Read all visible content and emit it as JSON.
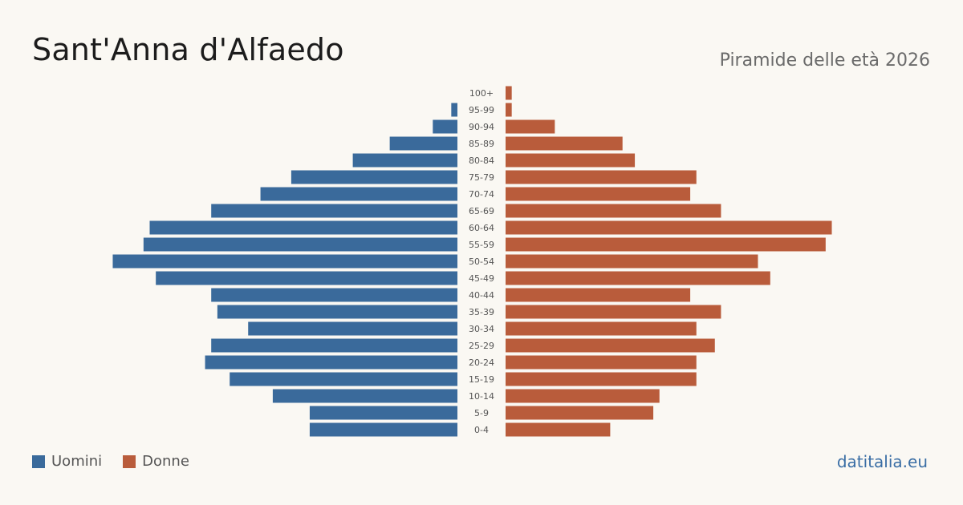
{
  "header": {
    "title": "Sant'Anna d'Alfaedo",
    "subtitle": "Piramide delle età 2026"
  },
  "legend": {
    "men_label": "Uomini",
    "women_label": "Donne"
  },
  "brand": "datitalia.eu",
  "colors": {
    "men": "#3a6a9b",
    "women": "#b95c3b",
    "background": "#faf8f3",
    "label": "#555555"
  },
  "chart_data": {
    "type": "bar",
    "orientation": "horizontal",
    "title": "Piramide delle età 2026",
    "categories": [
      "100+",
      "95-99",
      "90-94",
      "85-89",
      "80-84",
      "75-79",
      "70-74",
      "65-69",
      "60-64",
      "55-59",
      "50-54",
      "45-49",
      "40-44",
      "35-39",
      "30-34",
      "25-29",
      "20-24",
      "15-19",
      "10-14",
      "5-9",
      "0-4"
    ],
    "series": [
      {
        "name": "Uomini",
        "values": [
          0,
          1,
          4,
          11,
          17,
          27,
          32,
          40,
          50,
          51,
          56,
          49,
          40,
          39,
          34,
          40,
          41,
          37,
          30,
          24,
          24
        ]
      },
      {
        "name": "Donne",
        "values": [
          1,
          1,
          8,
          19,
          21,
          31,
          30,
          35,
          53,
          52,
          41,
          43,
          30,
          35,
          31,
          34,
          31,
          31,
          25,
          24,
          17
        ]
      }
    ],
    "legend_position": "bottom-left",
    "grid": false
  }
}
